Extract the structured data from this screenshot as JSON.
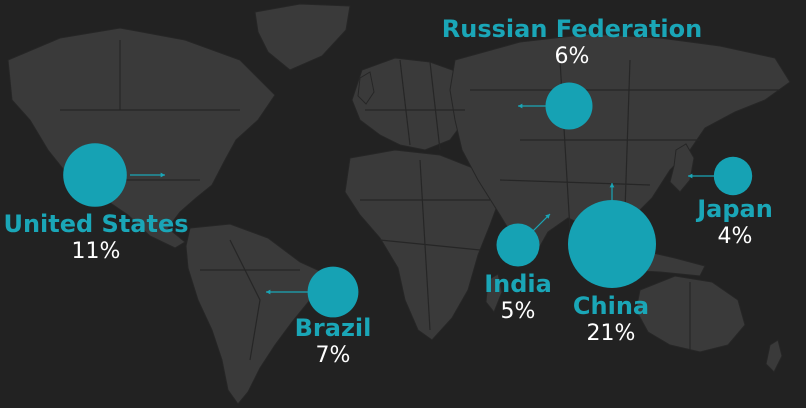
{
  "colors": {
    "background": "#222222",
    "land": "#3a3a3a",
    "border": "#262626",
    "bubble": "#16a2b4",
    "arrow": "#1aa6b7",
    "name_text": "#1aa6b7",
    "value_text": "#ffffff"
  },
  "countries": [
    {
      "key": "united-states",
      "name": "United States",
      "value": "11%",
      "share": 11
    },
    {
      "key": "brazil",
      "name": "Brazil",
      "value": "7%",
      "share": 7
    },
    {
      "key": "russian-federation",
      "name": "Russian Federation",
      "value": "6%",
      "share": 6
    },
    {
      "key": "india",
      "name": "India",
      "value": "5%",
      "share": 5
    },
    {
      "key": "china",
      "name": "China",
      "value": "21%",
      "share": 21
    },
    {
      "key": "japan",
      "name": "Japan",
      "value": "4%",
      "share": 4
    }
  ]
}
